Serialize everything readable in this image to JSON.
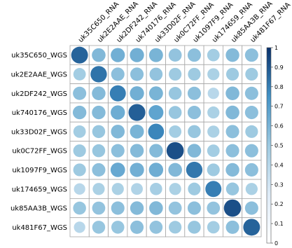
{
  "chart_data": {
    "type": "heatmap",
    "title": "",
    "xlabel": "",
    "ylabel": "",
    "x": [
      "uk35C650_RNA",
      "uk2E2AAE_RNA",
      "uk2DF242_RNA",
      "uk740176_RNA",
      "uk33D02F_RNA",
      "uk0C72FF_RNA",
      "uk1097F9_RNA",
      "uk174659_RNA",
      "uk85AA3B_RNA",
      "uk481F67_RNA"
    ],
    "y": [
      "uk35C650_WGS",
      "uk2E2AAE_WGS",
      "uk2DF242_WGS",
      "uk740176_WGS",
      "uk33D02F_WGS",
      "uk0C72FF_WGS",
      "uk1097F9_WGS",
      "uk174659_WGS",
      "uk85AA3B_WGS",
      "uk481F67_WGS"
    ],
    "values": [
      [
        0.87,
        0.58,
        0.62,
        0.62,
        0.6,
        0.53,
        0.55,
        0.48,
        0.57,
        0.55
      ],
      [
        0.48,
        0.83,
        0.55,
        0.55,
        0.53,
        0.5,
        0.5,
        0.45,
        0.5,
        0.5
      ],
      [
        0.55,
        0.57,
        0.8,
        0.62,
        0.6,
        0.52,
        0.55,
        0.4,
        0.58,
        0.55
      ],
      [
        0.57,
        0.57,
        0.63,
        0.88,
        0.67,
        0.52,
        0.55,
        0.45,
        0.58,
        0.55
      ],
      [
        0.48,
        0.52,
        0.58,
        0.6,
        0.78,
        0.48,
        0.52,
        0.45,
        0.55,
        0.5
      ],
      [
        0.5,
        0.52,
        0.55,
        0.57,
        0.57,
        0.92,
        0.58,
        0.48,
        0.55,
        0.55
      ],
      [
        0.5,
        0.55,
        0.65,
        0.62,
        0.63,
        0.58,
        0.82,
        0.5,
        0.57,
        0.55
      ],
      [
        0.4,
        0.45,
        0.45,
        0.43,
        0.47,
        0.45,
        0.5,
        0.8,
        0.52,
        0.45
      ],
      [
        0.52,
        0.53,
        0.55,
        0.57,
        0.58,
        0.53,
        0.55,
        0.53,
        0.92,
        0.55
      ],
      [
        0.4,
        0.52,
        0.52,
        0.55,
        0.53,
        0.5,
        0.52,
        0.48,
        0.55,
        0.87
      ]
    ],
    "marker": "circle",
    "value_range": [
      0,
      1
    ],
    "colorbar": {
      "ticks": [
        0,
        0.1,
        0.2,
        0.3,
        0.4,
        0.5,
        0.6,
        0.7,
        0.8,
        0.9,
        1
      ],
      "tick_labels": [
        "0",
        "0.1",
        "0.2",
        "0.3",
        "0.4",
        "0.5",
        "0.6",
        "0.7",
        "0.8",
        "0.9",
        "1"
      ],
      "colors": [
        "#ffffff",
        "#deebf7",
        "#9ecae1",
        "#4292c6",
        "#08306b"
      ],
      "placement": "right"
    },
    "grid": true,
    "legend": "none"
  }
}
